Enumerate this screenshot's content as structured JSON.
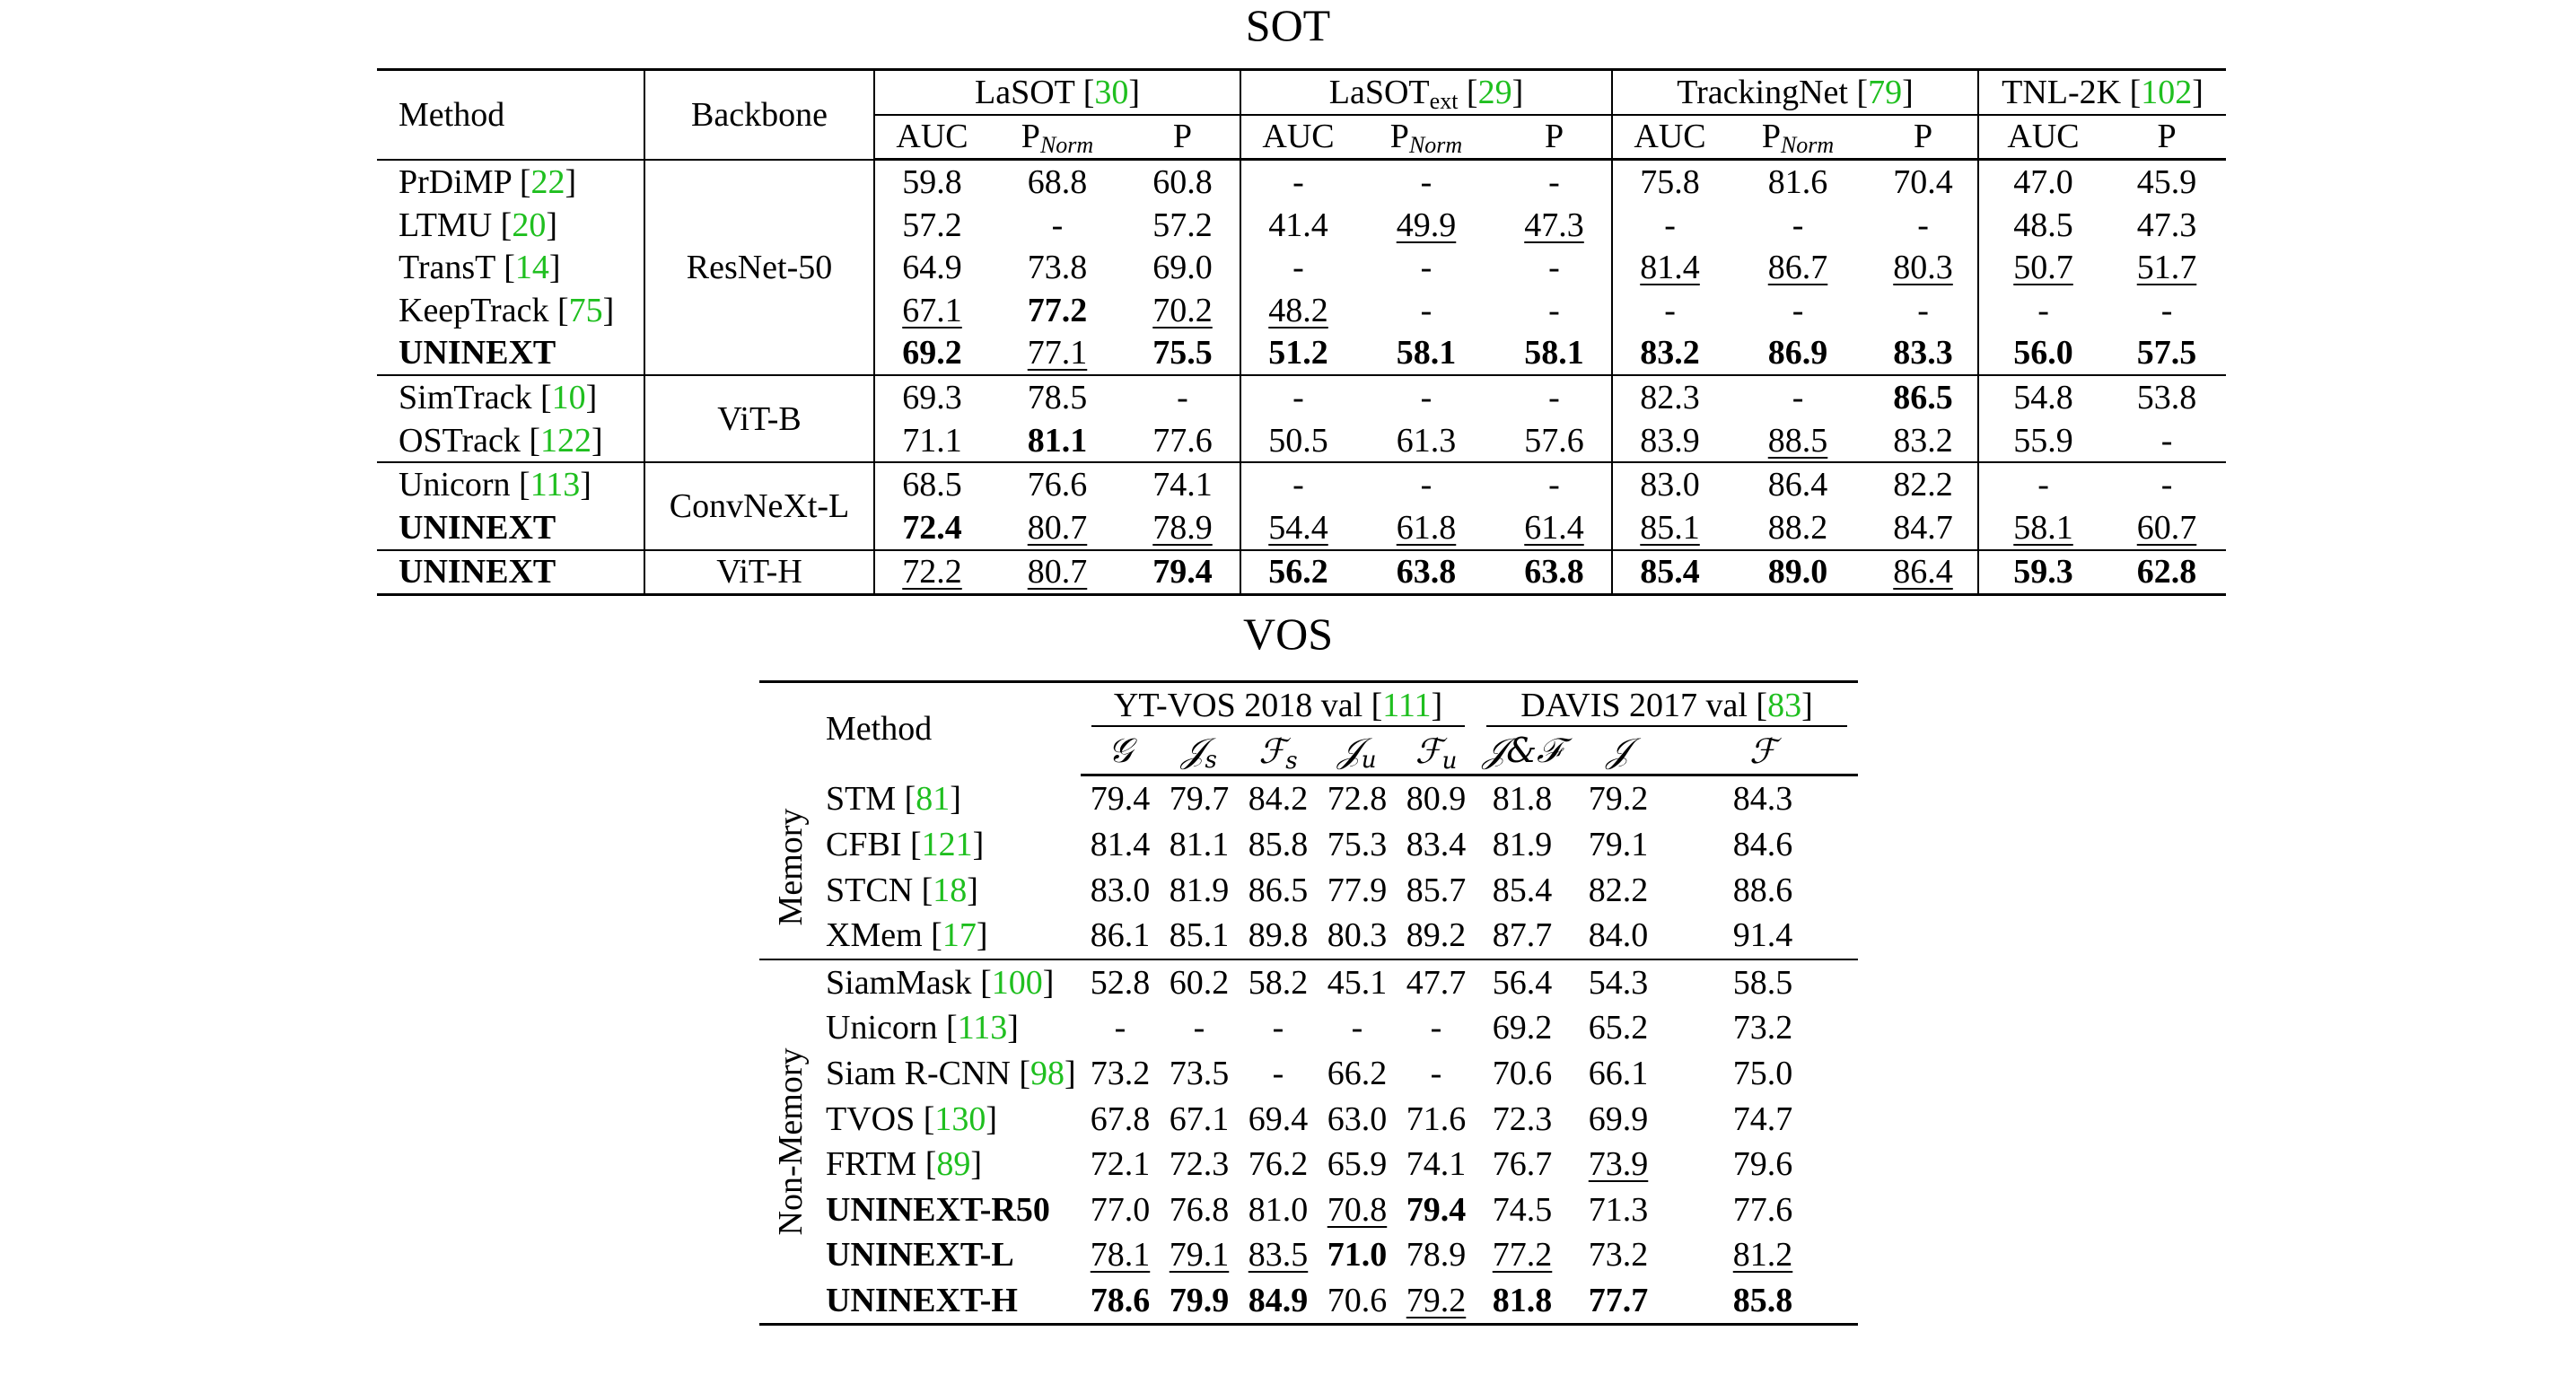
{
  "sot": {
    "title": "SOT",
    "headers": {
      "method": "Method",
      "backbone": "Backbone",
      "groups": [
        {
          "name": "LaSOT",
          "sub": "",
          "cite": "30"
        },
        {
          "name": "LaSOT",
          "sub": "ext",
          "cite": "29"
        },
        {
          "name": "TrackingNet",
          "sub": "",
          "cite": "79"
        },
        {
          "name": "TNL-2K",
          "sub": "",
          "cite": "102"
        }
      ],
      "auc": "AUC",
      "p": "P",
      "pnorm_base": "P",
      "pnorm_sub": "Norm"
    },
    "backbones": [
      "ResNet-50",
      "ViT-B",
      "ConvNeXt-L",
      "ViT-H"
    ],
    "rows": [
      {
        "method": "PrDiMP",
        "cite": "22",
        "values": [
          "59.8",
          "68.8",
          "60.8",
          "-",
          "-",
          "-",
          "75.8",
          "81.6",
          "70.4",
          "47.0",
          "45.9"
        ]
      },
      {
        "method": "LTMU",
        "cite": "20",
        "values": [
          "57.2",
          "-",
          "57.2",
          "41.4",
          "49.9",
          "47.3",
          "-",
          "-",
          "-",
          "48.5",
          "47.3"
        ]
      },
      {
        "method": "TransT",
        "cite": "14",
        "values": [
          "64.9",
          "73.8",
          "69.0",
          "-",
          "-",
          "-",
          "81.4",
          "86.7",
          "80.3",
          "50.7",
          "51.7"
        ]
      },
      {
        "method": "KeepTrack",
        "cite": "75",
        "values": [
          "67.1",
          "77.2",
          "70.2",
          "48.2",
          "-",
          "-",
          "-",
          "-",
          "-",
          "-",
          "-"
        ]
      },
      {
        "method": "UNINEXT",
        "cite": "",
        "values": [
          "69.2",
          "77.1",
          "75.5",
          "51.2",
          "58.1",
          "58.1",
          "83.2",
          "86.9",
          "83.3",
          "56.0",
          "57.5"
        ]
      },
      {
        "method": "SimTrack",
        "cite": "10",
        "values": [
          "69.3",
          "78.5",
          "-",
          "-",
          "-",
          "-",
          "82.3",
          "-",
          "86.5",
          "54.8",
          "53.8"
        ]
      },
      {
        "method": "OSTrack",
        "cite": "122",
        "values": [
          "71.1",
          "81.1",
          "77.6",
          "50.5",
          "61.3",
          "57.6",
          "83.9",
          "88.5",
          "83.2",
          "55.9",
          "-"
        ]
      },
      {
        "method": "Unicorn",
        "cite": "113",
        "values": [
          "68.5",
          "76.6",
          "74.1",
          "-",
          "-",
          "-",
          "83.0",
          "86.4",
          "82.2",
          "-",
          "-"
        ]
      },
      {
        "method": "UNINEXT",
        "cite": "",
        "values": [
          "72.4",
          "80.7",
          "78.9",
          "54.4",
          "61.8",
          "61.4",
          "85.1",
          "88.2",
          "84.7",
          "58.1",
          "60.7"
        ]
      },
      {
        "method": "UNINEXT",
        "cite": "",
        "values": [
          "72.2",
          "80.7",
          "79.4",
          "56.2",
          "63.8",
          "63.8",
          "85.4",
          "89.0",
          "86.4",
          "59.3",
          "62.8"
        ]
      }
    ]
  },
  "vos": {
    "title": "VOS",
    "headers": {
      "method": "Method",
      "groups": [
        {
          "name": "YT-VOS 2018 val",
          "cite": "111"
        },
        {
          "name": "DAVIS 2017 val",
          "cite": "83"
        }
      ],
      "metrics": [
        "𝒢",
        "𝒥s",
        "ℱs",
        "𝒥u",
        "ℱu",
        "𝒥&ℱ",
        "𝒥",
        "ℱ"
      ]
    },
    "groups": [
      "Memory",
      "Non-Memory"
    ],
    "rows": [
      {
        "method": "STM",
        "cite": "81",
        "values": [
          "79.4",
          "79.7",
          "84.2",
          "72.8",
          "80.9",
          "81.8",
          "79.2",
          "84.3"
        ]
      },
      {
        "method": "CFBI",
        "cite": "121",
        "values": [
          "81.4",
          "81.1",
          "85.8",
          "75.3",
          "83.4",
          "81.9",
          "79.1",
          "84.6"
        ]
      },
      {
        "method": "STCN",
        "cite": "18",
        "values": [
          "83.0",
          "81.9",
          "86.5",
          "77.9",
          "85.7",
          "85.4",
          "82.2",
          "88.6"
        ]
      },
      {
        "method": "XMem",
        "cite": "17",
        "values": [
          "86.1",
          "85.1",
          "89.8",
          "80.3",
          "89.2",
          "87.7",
          "84.0",
          "91.4"
        ]
      },
      {
        "method": "SiamMask",
        "cite": "100",
        "values": [
          "52.8",
          "60.2",
          "58.2",
          "45.1",
          "47.7",
          "56.4",
          "54.3",
          "58.5"
        ]
      },
      {
        "method": "Unicorn",
        "cite": "113",
        "values": [
          "-",
          "-",
          "-",
          "-",
          "-",
          "69.2",
          "65.2",
          "73.2"
        ]
      },
      {
        "method": "Siam R-CNN",
        "cite": "98",
        "values": [
          "73.2",
          "73.5",
          "-",
          "66.2",
          "-",
          "70.6",
          "66.1",
          "75.0"
        ]
      },
      {
        "method": "TVOS",
        "cite": "130",
        "values": [
          "67.8",
          "67.1",
          "69.4",
          "63.0",
          "71.6",
          "72.3",
          "69.9",
          "74.7"
        ]
      },
      {
        "method": "FRTM",
        "cite": "89",
        "values": [
          "72.1",
          "72.3",
          "76.2",
          "65.9",
          "74.1",
          "76.7",
          "73.9",
          "79.6"
        ]
      },
      {
        "method": "UNINEXT-R50",
        "cite": "",
        "values": [
          "77.0",
          "76.8",
          "81.0",
          "70.8",
          "79.4",
          "74.5",
          "71.3",
          "77.6"
        ]
      },
      {
        "method": "UNINEXT-L",
        "cite": "",
        "values": [
          "78.1",
          "79.1",
          "83.5",
          "71.0",
          "78.9",
          "77.2",
          "73.2",
          "81.2"
        ]
      },
      {
        "method": "UNINEXT-H",
        "cite": "",
        "values": [
          "78.6",
          "79.9",
          "84.9",
          "70.6",
          "79.2",
          "81.8",
          "77.7",
          "85.8"
        ]
      }
    ]
  }
}
